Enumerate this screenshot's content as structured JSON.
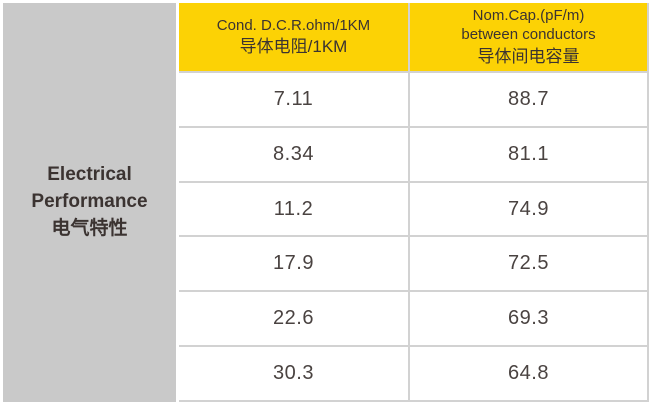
{
  "colors": {
    "page_bg": "#FFFFFF",
    "side_bg": "#C9C9C9",
    "header_bg": "#FCD205",
    "grid_line": "#D2D2D2",
    "header_text": "#3B3331",
    "value_text": "#4A4341"
  },
  "side_header": {
    "line1": "Electrical",
    "line2": "Performance",
    "line3": "电气特性"
  },
  "columns": {
    "dcr": {
      "en": "Cond. D.C.R.ohm/1KM",
      "zh": "导体电阻/1KM"
    },
    "cap": {
      "en1": "Nom.Cap.(pF/m)",
      "en2": "between conductors",
      "zh": "导体间电容量"
    }
  },
  "rows": [
    {
      "dcr": "7.11",
      "cap": "88.7"
    },
    {
      "dcr": "8.34",
      "cap": "81.1"
    },
    {
      "dcr": "11.2",
      "cap": "74.9"
    },
    {
      "dcr": "17.9",
      "cap": "72.5"
    },
    {
      "dcr": "22.6",
      "cap": "69.3"
    },
    {
      "dcr": "30.3",
      "cap": "64.8"
    }
  ],
  "chart_data": {
    "type": "table",
    "title": "Electrical Performance 电气特性",
    "row_group_label": "Electrical Performance 电气特性",
    "columns": [
      "Cond. D.C.R.ohm/1KM 导体电阻/1KM",
      "Nom.Cap.(pF/m) between conductors 导体间电容量"
    ],
    "rows": [
      [
        7.11,
        88.7
      ],
      [
        8.34,
        81.1
      ],
      [
        11.2,
        74.9
      ],
      [
        17.9,
        72.5
      ],
      [
        22.6,
        69.3
      ],
      [
        30.3,
        64.8
      ]
    ],
    "layout": {
      "header_bg": "#FCD205",
      "side_cell_bg": "#C9C9C9",
      "grid": "on"
    }
  }
}
